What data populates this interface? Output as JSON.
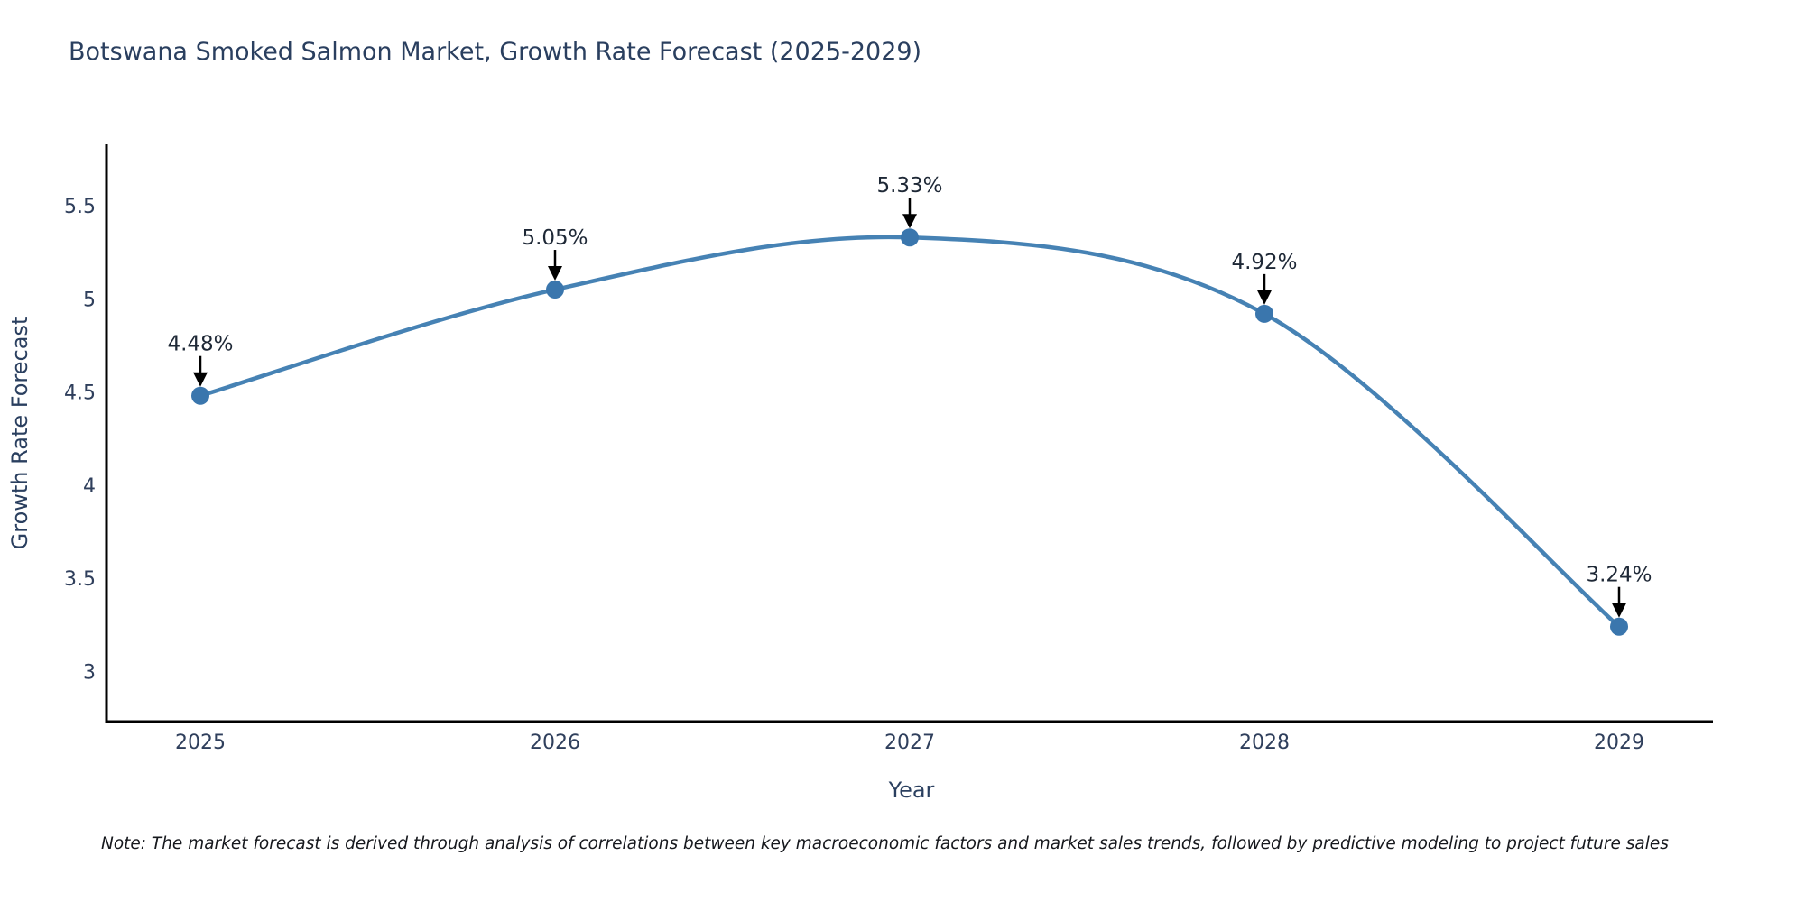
{
  "title": "Botswana Smoked Salmon Market, Growth Rate Forecast (2025-2029)",
  "note": "Note: The market forecast is derived through analysis of correlations between key macroeconomic factors and market sales trends, followed by predictive modeling to project future sales",
  "chart_data": {
    "type": "line",
    "curve": "spline",
    "title": "Botswana Smoked Salmon Market, Growth Rate Forecast (2025-2029)",
    "xlabel": "Year",
    "ylabel": "Growth Rate Forecast",
    "categories": [
      "2025",
      "2026",
      "2027",
      "2028",
      "2029"
    ],
    "values": [
      4.48,
      5.05,
      5.33,
      4.92,
      3.24
    ],
    "point_labels": [
      "4.48%",
      "5.05%",
      "5.33%",
      "4.92%",
      "3.24%"
    ],
    "yticks": [
      3,
      3.5,
      4,
      4.5,
      5,
      5.5
    ],
    "ylim": [
      2.73,
      5.83
    ],
    "grid": false,
    "legend": "none",
    "annotations_style": "black-down-arrows",
    "colors": {
      "line": "#4682b4",
      "marker": "#3a76ad",
      "arrow": "#000000",
      "title_text": "#2a3f5f",
      "tick_text": "#2f3f5c",
      "annotation_text": "#1e2836",
      "axis_line": "#000000",
      "background": "#ffffff"
    }
  }
}
